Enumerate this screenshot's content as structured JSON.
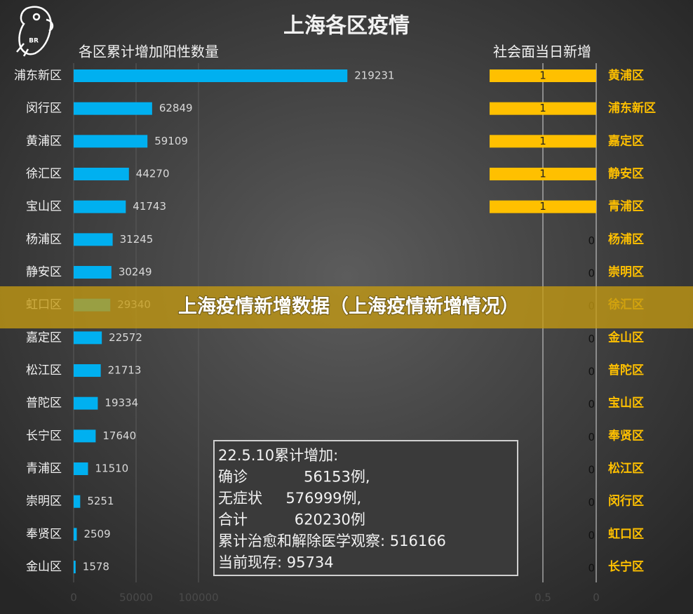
{
  "title": "上海各区疫情",
  "logo_text": "BR",
  "banner": "上海疫情新增数据（上海疫情新增情况）",
  "notes": [
    "22.5.10累计增加:",
    "确诊            56153例,",
    "无症状     576999例,",
    "合计          620230例",
    "累计治愈和解除医学观察: 516166",
    "当前现存: 95734"
  ],
  "chart_data": [
    {
      "type": "bar",
      "orientation": "horizontal",
      "title": "各区累计增加阳性数量",
      "categories": [
        "浦东新区",
        "闵行区",
        "黄浦区",
        "徐汇区",
        "宝山区",
        "杨浦区",
        "静安区",
        "虹口区",
        "嘉定区",
        "松江区",
        "普陀区",
        "长宁区",
        "青浦区",
        "崇明区",
        "奉贤区",
        "金山区"
      ],
      "values": [
        219231,
        62849,
        59109,
        44270,
        41743,
        31245,
        30249,
        29340,
        22572,
        21713,
        19334,
        17640,
        11510,
        5251,
        2509,
        1578
      ],
      "color": "#00b0f0",
      "xlim": [
        0,
        250000
      ],
      "xticks": [
        0,
        50000,
        100000
      ],
      "grid": true,
      "label_side": "left"
    },
    {
      "type": "bar",
      "orientation": "horizontal",
      "title": "社会面当日新增",
      "categories": [
        "黄浦区",
        "浦东新区",
        "嘉定区",
        "静安区",
        "青浦区",
        "杨浦区",
        "崇明区",
        "徐汇区",
        "金山区",
        "普陀区",
        "宝山区",
        "奉贤区",
        "松江区",
        "闵行区",
        "虹口区",
        "长宁区"
      ],
      "values": [
        1,
        1,
        1,
        1,
        1,
        0,
        0,
        0,
        0,
        0,
        0,
        0,
        0,
        0,
        0,
        0
      ],
      "color": "#ffc000",
      "xlim": [
        1,
        0
      ],
      "xticks": [
        0.5,
        0
      ],
      "grid": true,
      "label_side": "right"
    }
  ]
}
